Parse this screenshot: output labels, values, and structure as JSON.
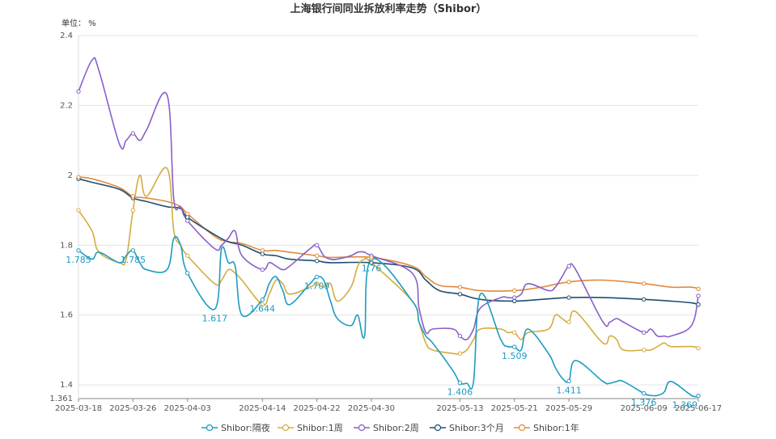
{
  "chart_data": {
    "type": "line",
    "title": "上海银行间同业拆放利率走势（Shibor）",
    "unit_label": "单位：  %",
    "x_ticks": [
      "2025-03-18",
      "2025-03-26",
      "2025-04-03",
      "2025-04-14",
      "2025-04-22",
      "2025-04-30",
      "2025-05-13",
      "2025-05-21",
      "2025-05-29",
      "2025-06-09",
      "2025-06-17"
    ],
    "y_ticks": [
      "2.4",
      "2.2",
      "2",
      "1.8",
      "1.6",
      "1.4",
      "1.361"
    ],
    "ylim": [
      1.361,
      2.4
    ],
    "grid": true,
    "legend_position": "bottom",
    "series": [
      {
        "name": "Shibor:隔夜",
        "color": "#1e9bc0",
        "points": [
          [
            "2025-03-18",
            1.785
          ],
          [
            "2025-03-20",
            1.76
          ],
          [
            "2025-03-21",
            1.78
          ],
          [
            "2025-03-24",
            1.75
          ],
          [
            "2025-03-25",
            1.77
          ],
          [
            "2025-03-26",
            1.785
          ],
          [
            "2025-03-27",
            1.75
          ],
          [
            "2025-03-28",
            1.73
          ],
          [
            "2025-03-31",
            1.73
          ],
          [
            "2025-04-01",
            1.82
          ],
          [
            "2025-04-02",
            1.8
          ],
          [
            "2025-04-03",
            1.72
          ],
          [
            "2025-04-07",
            1.617
          ],
          [
            "2025-04-08",
            1.79
          ],
          [
            "2025-04-09",
            1.75
          ],
          [
            "2025-04-10",
            1.74
          ],
          [
            "2025-04-11",
            1.6
          ],
          [
            "2025-04-14",
            1.644
          ],
          [
            "2025-04-15",
            1.69
          ],
          [
            "2025-04-16",
            1.71
          ],
          [
            "2025-04-17",
            1.67
          ],
          [
            "2025-04-18",
            1.63
          ],
          [
            "2025-04-21",
            1.69
          ],
          [
            "2025-04-22",
            1.709
          ],
          [
            "2025-04-23",
            1.7
          ],
          [
            "2025-04-24",
            1.64
          ],
          [
            "2025-04-25",
            1.59
          ],
          [
            "2025-04-27",
            1.57
          ],
          [
            "2025-04-28",
            1.6
          ],
          [
            "2025-04-29",
            1.54
          ],
          [
            "2025-04-30",
            1.76
          ],
          [
            "2025-05-06",
            1.64
          ],
          [
            "2025-05-07",
            1.58
          ],
          [
            "2025-05-08",
            1.54
          ],
          [
            "2025-05-09",
            1.52
          ],
          [
            "2025-05-12",
            1.44
          ],
          [
            "2025-05-13",
            1.406
          ],
          [
            "2025-05-14",
            1.405
          ],
          [
            "2025-05-15",
            1.41
          ],
          [
            "2025-05-16",
            1.66
          ],
          [
            "2025-05-19",
            1.53
          ],
          [
            "2025-05-20",
            1.51
          ],
          [
            "2025-05-21",
            1.509
          ],
          [
            "2025-05-22",
            1.5
          ],
          [
            "2025-05-23",
            1.56
          ],
          [
            "2025-05-26",
            1.49
          ],
          [
            "2025-05-27",
            1.45
          ],
          [
            "2025-05-28",
            1.42
          ],
          [
            "2025-05-29",
            1.411
          ],
          [
            "2025-05-30",
            1.47
          ],
          [
            "2025-06-03",
            1.41
          ],
          [
            "2025-06-04",
            1.405
          ],
          [
            "2025-06-05",
            1.41
          ],
          [
            "2025-06-06",
            1.41
          ],
          [
            "2025-06-09",
            1.376
          ],
          [
            "2025-06-10",
            1.37
          ],
          [
            "2025-06-11",
            1.37
          ],
          [
            "2025-06-12",
            1.38
          ],
          [
            "2025-06-13",
            1.41
          ],
          [
            "2025-06-16",
            1.37
          ],
          [
            "2025-06-17",
            1.369
          ]
        ]
      },
      {
        "name": "Shibor:1周",
        "color": "#d4ac3f",
        "points": [
          [
            "2025-03-18",
            1.9
          ],
          [
            "2025-03-20",
            1.84
          ],
          [
            "2025-03-21",
            1.78
          ],
          [
            "2025-03-24",
            1.75
          ],
          [
            "2025-03-25",
            1.76
          ],
          [
            "2025-03-26",
            1.9
          ],
          [
            "2025-03-27",
            2.0
          ],
          [
            "2025-03-28",
            1.94
          ],
          [
            "2025-03-31",
            2.02
          ],
          [
            "2025-04-01",
            1.84
          ],
          [
            "2025-04-02",
            1.8
          ],
          [
            "2025-04-03",
            1.77
          ],
          [
            "2025-04-07",
            1.69
          ],
          [
            "2025-04-08",
            1.7
          ],
          [
            "2025-04-09",
            1.73
          ],
          [
            "2025-04-10",
            1.72
          ],
          [
            "2025-04-11",
            1.7
          ],
          [
            "2025-04-14",
            1.63
          ],
          [
            "2025-04-15",
            1.66
          ],
          [
            "2025-04-16",
            1.7
          ],
          [
            "2025-04-17",
            1.69
          ],
          [
            "2025-04-18",
            1.66
          ],
          [
            "2025-04-21",
            1.68
          ],
          [
            "2025-04-22",
            1.69
          ],
          [
            "2025-04-23",
            1.68
          ],
          [
            "2025-04-24",
            1.69
          ],
          [
            "2025-04-25",
            1.64
          ],
          [
            "2025-04-27",
            1.68
          ],
          [
            "2025-04-28",
            1.74
          ],
          [
            "2025-04-29",
            1.76
          ],
          [
            "2025-04-30",
            1.75
          ],
          [
            "2025-05-06",
            1.64
          ],
          [
            "2025-05-07",
            1.58
          ],
          [
            "2025-05-08",
            1.52
          ],
          [
            "2025-05-09",
            1.5
          ],
          [
            "2025-05-12",
            1.49
          ],
          [
            "2025-05-13",
            1.49
          ],
          [
            "2025-05-14",
            1.5
          ],
          [
            "2025-05-15",
            1.53
          ],
          [
            "2025-05-16",
            1.56
          ],
          [
            "2025-05-19",
            1.56
          ],
          [
            "2025-05-20",
            1.55
          ],
          [
            "2025-05-21",
            1.55
          ],
          [
            "2025-05-22",
            1.53
          ],
          [
            "2025-05-23",
            1.55
          ],
          [
            "2025-05-26",
            1.56
          ],
          [
            "2025-05-27",
            1.6
          ],
          [
            "2025-05-28",
            1.59
          ],
          [
            "2025-05-29",
            1.58
          ],
          [
            "2025-05-30",
            1.61
          ],
          [
            "2025-06-03",
            1.52
          ],
          [
            "2025-06-04",
            1.54
          ],
          [
            "2025-06-05",
            1.53
          ],
          [
            "2025-06-06",
            1.5
          ],
          [
            "2025-06-09",
            1.5
          ],
          [
            "2025-06-10",
            1.5
          ],
          [
            "2025-06-11",
            1.51
          ],
          [
            "2025-06-12",
            1.52
          ],
          [
            "2025-06-13",
            1.51
          ],
          [
            "2025-06-16",
            1.51
          ],
          [
            "2025-06-17",
            1.505
          ]
        ]
      },
      {
        "name": "Shibor:2周",
        "color": "#8a5fc9",
        "points": [
          [
            "2025-03-18",
            2.24
          ],
          [
            "2025-03-20",
            2.33
          ],
          [
            "2025-03-21",
            2.3
          ],
          [
            "2025-03-24",
            2.09
          ],
          [
            "2025-03-25",
            2.1
          ],
          [
            "2025-03-26",
            2.12
          ],
          [
            "2025-03-27",
            2.1
          ],
          [
            "2025-03-28",
            2.13
          ],
          [
            "2025-03-31",
            2.23
          ],
          [
            "2025-04-01",
            1.93
          ],
          [
            "2025-04-02",
            1.91
          ],
          [
            "2025-04-03",
            1.87
          ],
          [
            "2025-04-07",
            1.79
          ],
          [
            "2025-04-08",
            1.8
          ],
          [
            "2025-04-09",
            1.82
          ],
          [
            "2025-04-10",
            1.84
          ],
          [
            "2025-04-11",
            1.77
          ],
          [
            "2025-04-14",
            1.73
          ],
          [
            "2025-04-15",
            1.75
          ],
          [
            "2025-04-16",
            1.74
          ],
          [
            "2025-04-17",
            1.73
          ],
          [
            "2025-04-18",
            1.74
          ],
          [
            "2025-04-21",
            1.79
          ],
          [
            "2025-04-22",
            1.8
          ],
          [
            "2025-04-23",
            1.77
          ],
          [
            "2025-04-24",
            1.76
          ],
          [
            "2025-04-25",
            1.76
          ],
          [
            "2025-04-27",
            1.77
          ],
          [
            "2025-04-28",
            1.78
          ],
          [
            "2025-04-29",
            1.78
          ],
          [
            "2025-04-30",
            1.77
          ],
          [
            "2025-05-06",
            1.72
          ],
          [
            "2025-05-07",
            1.62
          ],
          [
            "2025-05-08",
            1.55
          ],
          [
            "2025-05-09",
            1.56
          ],
          [
            "2025-05-12",
            1.56
          ],
          [
            "2025-05-13",
            1.54
          ],
          [
            "2025-05-14",
            1.53
          ],
          [
            "2025-05-15",
            1.56
          ],
          [
            "2025-05-16",
            1.62
          ],
          [
            "2025-05-19",
            1.65
          ],
          [
            "2025-05-20",
            1.65
          ],
          [
            "2025-05-21",
            1.65
          ],
          [
            "2025-05-22",
            1.66
          ],
          [
            "2025-05-23",
            1.69
          ],
          [
            "2025-05-26",
            1.67
          ],
          [
            "2025-05-27",
            1.68
          ],
          [
            "2025-05-28",
            1.71
          ],
          [
            "2025-05-29",
            1.74
          ],
          [
            "2025-05-30",
            1.73
          ],
          [
            "2025-06-03",
            1.58
          ],
          [
            "2025-06-04",
            1.58
          ],
          [
            "2025-06-05",
            1.59
          ],
          [
            "2025-06-06",
            1.58
          ],
          [
            "2025-06-09",
            1.55
          ],
          [
            "2025-06-10",
            1.56
          ],
          [
            "2025-06-11",
            1.54
          ],
          [
            "2025-06-12",
            1.54
          ],
          [
            "2025-06-13",
            1.54
          ],
          [
            "2025-06-16",
            1.57
          ],
          [
            "2025-06-17",
            1.655
          ]
        ]
      },
      {
        "name": "Shibor:3个月",
        "color": "#1f4e6e",
        "points": [
          [
            "2025-03-18",
            1.99
          ],
          [
            "2025-03-20",
            1.98
          ],
          [
            "2025-03-24",
            1.96
          ],
          [
            "2025-03-26",
            1.935
          ],
          [
            "2025-03-28",
            1.925
          ],
          [
            "2025-03-31",
            1.91
          ],
          [
            "2025-04-02",
            1.905
          ],
          [
            "2025-04-03",
            1.88
          ],
          [
            "2025-04-07",
            1.83
          ],
          [
            "2025-04-09",
            1.81
          ],
          [
            "2025-04-11",
            1.8
          ],
          [
            "2025-04-14",
            1.775
          ],
          [
            "2025-04-16",
            1.77
          ],
          [
            "2025-04-18",
            1.76
          ],
          [
            "2025-04-22",
            1.755
          ],
          [
            "2025-04-24",
            1.75
          ],
          [
            "2025-04-30",
            1.75
          ],
          [
            "2025-05-06",
            1.735
          ],
          [
            "2025-05-08",
            1.7
          ],
          [
            "2025-05-10",
            1.67
          ],
          [
            "2025-05-13",
            1.66
          ],
          [
            "2025-05-16",
            1.645
          ],
          [
            "2025-05-21",
            1.64
          ],
          [
            "2025-05-25",
            1.645
          ],
          [
            "2025-05-29",
            1.65
          ],
          [
            "2025-06-03",
            1.65
          ],
          [
            "2025-06-09",
            1.645
          ],
          [
            "2025-06-13",
            1.64
          ],
          [
            "2025-06-16",
            1.635
          ],
          [
            "2025-06-17",
            1.63
          ]
        ]
      },
      {
        "name": "Shibor:1年",
        "color": "#e08a3c",
        "points": [
          [
            "2025-03-18",
            1.995
          ],
          [
            "2025-03-20",
            1.99
          ],
          [
            "2025-03-24",
            1.965
          ],
          [
            "2025-03-26",
            1.94
          ],
          [
            "2025-03-28",
            1.935
          ],
          [
            "2025-03-31",
            1.925
          ],
          [
            "2025-04-02",
            1.91
          ],
          [
            "2025-04-03",
            1.89
          ],
          [
            "2025-04-07",
            1.825
          ],
          [
            "2025-04-09",
            1.81
          ],
          [
            "2025-04-11",
            1.805
          ],
          [
            "2025-04-14",
            1.785
          ],
          [
            "2025-04-16",
            1.785
          ],
          [
            "2025-04-18",
            1.78
          ],
          [
            "2025-04-22",
            1.77
          ],
          [
            "2025-04-24",
            1.765
          ],
          [
            "2025-04-30",
            1.765
          ],
          [
            "2025-05-06",
            1.74
          ],
          [
            "2025-05-08",
            1.71
          ],
          [
            "2025-05-10",
            1.685
          ],
          [
            "2025-05-13",
            1.68
          ],
          [
            "2025-05-16",
            1.67
          ],
          [
            "2025-05-21",
            1.67
          ],
          [
            "2025-05-25",
            1.68
          ],
          [
            "2025-05-29",
            1.695
          ],
          [
            "2025-06-03",
            1.7
          ],
          [
            "2025-06-09",
            1.69
          ],
          [
            "2025-06-13",
            1.68
          ],
          [
            "2025-06-16",
            1.68
          ],
          [
            "2025-06-17",
            1.675
          ]
        ]
      }
    ],
    "data_labels": [
      {
        "series": 0,
        "date": "2025-03-18",
        "text": "1.785"
      },
      {
        "series": 0,
        "date": "2025-03-26",
        "text": "1.785"
      },
      {
        "series": 0,
        "date": "2025-04-07",
        "text": "1.617"
      },
      {
        "series": 0,
        "date": "2025-04-14",
        "text": "1.644"
      },
      {
        "series": 0,
        "date": "2025-04-22",
        "text": "1.709"
      },
      {
        "series": 0,
        "date": "2025-04-30",
        "text": "1.76"
      },
      {
        "series": 0,
        "date": "2025-05-13",
        "text": "1.406"
      },
      {
        "series": 0,
        "date": "2025-05-21",
        "text": "1.509"
      },
      {
        "series": 0,
        "date": "2025-05-29",
        "text": "1.411"
      },
      {
        "series": 0,
        "date": "2025-06-09",
        "text": "1.376"
      },
      {
        "series": 0,
        "date": "2025-06-17",
        "text": "1.369"
      }
    ]
  }
}
